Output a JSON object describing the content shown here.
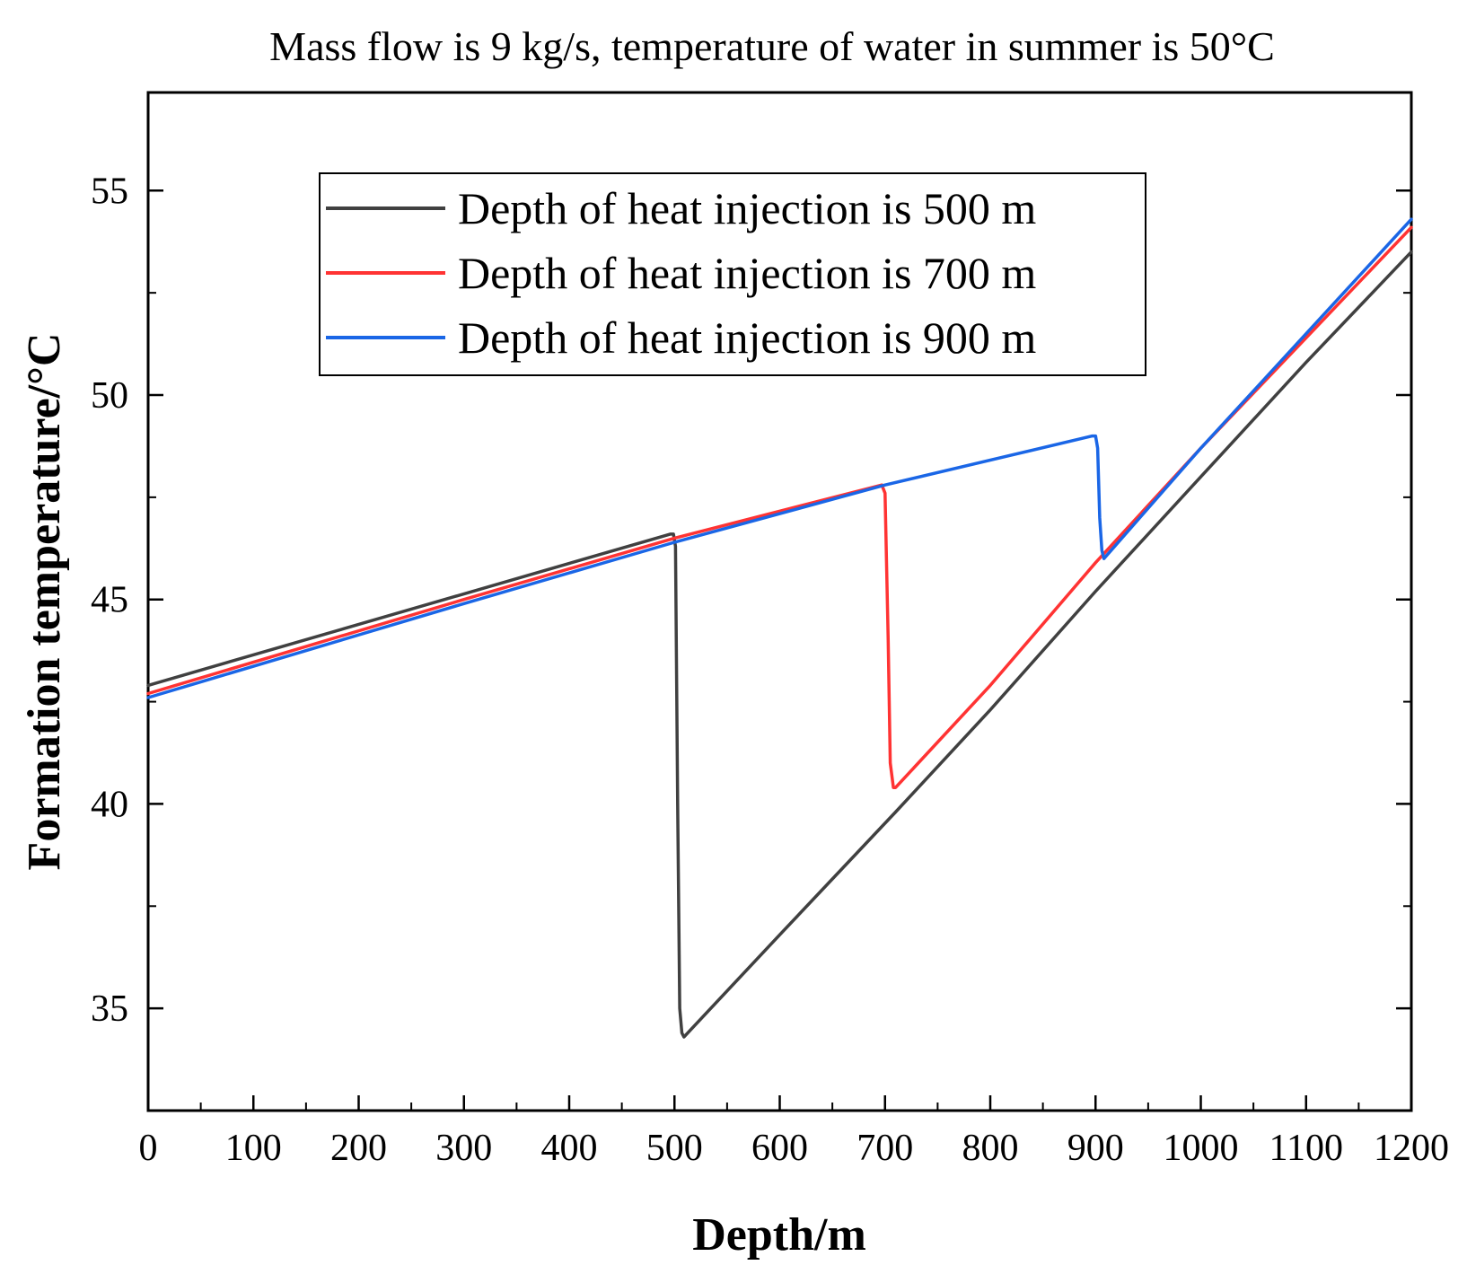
{
  "chart_data": {
    "type": "line",
    "title": "Mass flow is 9 kg/s, temperature of water in summer is 50°C",
    "xlabel": "Depth/m",
    "ylabel": "Formation temperature/°C",
    "xlim": [
      0,
      1200
    ],
    "ylim": [
      32.5,
      57.4
    ],
    "xticks": [
      0,
      100,
      200,
      300,
      400,
      500,
      600,
      700,
      800,
      900,
      1000,
      1100,
      1200
    ],
    "xtick_labels": [
      "0",
      "100",
      "200",
      "300",
      "400",
      "500",
      "600",
      "700",
      "800",
      "900",
      "1000",
      "1100",
      "1200"
    ],
    "yticks": [
      35,
      40,
      45,
      50,
      55
    ],
    "ytick_labels": [
      "35",
      "40",
      "45",
      "50",
      "55"
    ],
    "grid": false,
    "legend_position": "top-center",
    "series": [
      {
        "name": "Depth of heat injection is 500 m",
        "color": "#404040",
        "x": [
          0,
          496,
          499,
          501,
          503,
          505,
          507,
          509,
          600,
          710,
          800,
          900,
          1000,
          1100,
          1200
        ],
        "y": [
          42.9,
          46.6,
          46.6,
          46.3,
          40.0,
          35.0,
          34.4,
          34.3,
          36.8,
          39.8,
          42.3,
          45.2,
          48.0,
          50.8,
          53.5
        ]
      },
      {
        "name": "Depth of heat injection is 700 m",
        "color": "#ff3333",
        "x": [
          0,
          300,
          500,
          697,
          700,
          703,
          705,
          708,
          710,
          800,
          900,
          1000,
          1100,
          1200
        ],
        "y": [
          42.7,
          45.0,
          46.5,
          47.8,
          47.6,
          44.0,
          41.0,
          40.4,
          40.4,
          42.9,
          45.9,
          48.7,
          51.4,
          54.1
        ]
      },
      {
        "name": "Depth of heat injection is 900 m",
        "color": "#1a66e6",
        "x": [
          0,
          300,
          500,
          700,
          897,
          900,
          902,
          904,
          906,
          908,
          1000,
          1100,
          1200
        ],
        "y": [
          42.6,
          44.9,
          46.4,
          47.8,
          49.0,
          49.0,
          48.7,
          47.0,
          46.2,
          46.0,
          48.7,
          51.5,
          54.3
        ]
      }
    ]
  }
}
